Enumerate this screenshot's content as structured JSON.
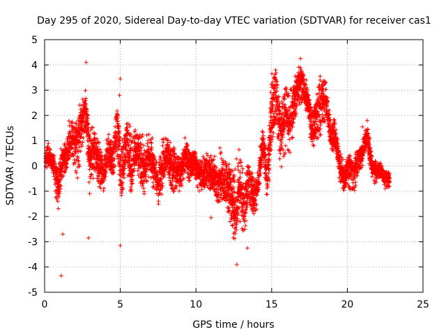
{
  "chart_data": {
    "type": "scatter",
    "title": "Day 295 of 2020, Sidereal Day-to-day VTEC variation (SDTVAR) for receiver cas1",
    "xlabel": "GPS time / hours",
    "ylabel": "SDTVAR / TECUs",
    "xlim": [
      0,
      25
    ],
    "ylim": [
      -5,
      5
    ],
    "x_ticks": [
      0,
      5,
      10,
      15,
      20,
      25
    ],
    "y_ticks": [
      -5,
      -4,
      -3,
      -2,
      -1,
      0,
      1,
      2,
      3,
      4,
      5
    ],
    "grid": true,
    "marker": "plus",
    "color": "#ff0000",
    "envelope": {
      "x": [
        0.0,
        0.3,
        0.6,
        0.9,
        1.2,
        1.5,
        1.8,
        2.1,
        2.4,
        2.7,
        3.0,
        3.3,
        3.6,
        3.9,
        4.2,
        4.5,
        4.8,
        5.1,
        5.4,
        5.7,
        6.0,
        6.3,
        6.6,
        6.9,
        7.2,
        7.5,
        7.8,
        8.1,
        8.4,
        8.7,
        9.0,
        9.3,
        9.6,
        9.9,
        10.2,
        10.5,
        10.8,
        11.1,
        11.4,
        11.7,
        12.0,
        12.3,
        12.6,
        12.9,
        13.2,
        13.5,
        13.8,
        14.1,
        14.4,
        14.7,
        15.0,
        15.3,
        15.6,
        15.9,
        16.2,
        16.5,
        16.8,
        17.1,
        17.4,
        17.7,
        18.0,
        18.3,
        18.6,
        18.9,
        19.2,
        19.5,
        19.8,
        20.1,
        20.4,
        20.7,
        21.0,
        21.3,
        21.6,
        21.9,
        22.2,
        22.5,
        22.8
      ],
      "center": [
        0.3,
        0.4,
        0.1,
        -0.8,
        0.2,
        0.5,
        1.0,
        0.8,
        1.5,
        2.2,
        0.2,
        0.8,
        0.0,
        -0.3,
        0.6,
        0.2,
        1.4,
        -0.5,
        1.0,
        -0.3,
        0.5,
        0.2,
        -0.3,
        0.4,
        0.1,
        -0.6,
        0.2,
        0.6,
        0.0,
        -0.2,
        -0.2,
        0.5,
        0.0,
        0.2,
        -0.3,
        -0.4,
        -0.2,
        -0.4,
        -0.8,
        -0.6,
        -0.7,
        -1.0,
        -2.0,
        -0.8,
        -1.8,
        -0.6,
        -1.4,
        -0.9,
        0.8,
        -0.5,
        2.0,
        2.8,
        1.0,
        2.0,
        1.5,
        2.5,
        3.3,
        3.0,
        2.5,
        1.5,
        2.0,
        2.5,
        2.7,
        1.0,
        1.2,
        0.0,
        -0.5,
        0.0,
        -0.3,
        0.2,
        0.5,
        1.2,
        0.0,
        -0.3,
        -0.2,
        -0.5,
        -0.5
      ],
      "spread": [
        0.5,
        0.6,
        0.6,
        1.2,
        0.8,
        1.0,
        0.9,
        1.0,
        1.2,
        1.2,
        1.1,
        1.0,
        1.0,
        1.0,
        0.9,
        1.2,
        1.4,
        1.6,
        1.0,
        1.2,
        0.9,
        1.1,
        1.0,
        0.9,
        1.0,
        0.9,
        1.0,
        0.8,
        0.8,
        0.7,
        0.7,
        0.8,
        0.7,
        0.7,
        0.6,
        0.7,
        0.7,
        0.8,
        0.8,
        0.9,
        0.9,
        1.0,
        1.4,
        1.2,
        1.3,
        1.0,
        1.0,
        1.0,
        0.9,
        0.8,
        1.1,
        1.0,
        0.9,
        1.0,
        0.9,
        0.9,
        0.8,
        0.8,
        0.9,
        0.9,
        0.9,
        0.8,
        0.6,
        0.6,
        0.6,
        0.5,
        0.5,
        0.5,
        0.5,
        0.5,
        0.6,
        0.6,
        0.5,
        0.5,
        0.4,
        0.4,
        0.3
      ]
    },
    "outliers": [
      {
        "x": 1.1,
        "y": -4.35
      },
      {
        "x": 2.75,
        "y": 4.1
      },
      {
        "x": 5.0,
        "y": 3.45
      },
      {
        "x": 4.95,
        "y": 2.8
      },
      {
        "x": 2.9,
        "y": -2.85
      },
      {
        "x": 1.2,
        "y": -2.7
      },
      {
        "x": 12.7,
        "y": -3.9
      },
      {
        "x": 13.4,
        "y": -3.25
      },
      {
        "x": 16.9,
        "y": 4.25
      },
      {
        "x": 18.2,
        "y": 3.55
      },
      {
        "x": 5.0,
        "y": -3.15
      },
      {
        "x": 11.0,
        "y": -2.05
      },
      {
        "x": 18.5,
        "y": 3.3
      },
      {
        "x": 21.0,
        "y": 1.55
      }
    ]
  }
}
